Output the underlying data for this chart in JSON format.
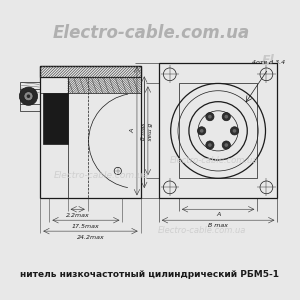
{
  "bg_color": "#e8e8e8",
  "line_color": "#1a1a1a",
  "dark_fill": "#2a2a2a",
  "hatch_fill": "#555555",
  "mid_fill": "#888888",
  "light_fill": "#cccccc",
  "watermark_color": "#c0c0c0",
  "title_top": "Electro-cable.com.ua",
  "caption": "нитель низкочастотный цилиндрический РБМ5-1",
  "label_22max": "2.2max",
  "label_175max": "17.5max",
  "label_242max": "24.2max",
  "label_4otv": "4отв d 3.4",
  "label_Bmax": "B max",
  "label_A": "A"
}
